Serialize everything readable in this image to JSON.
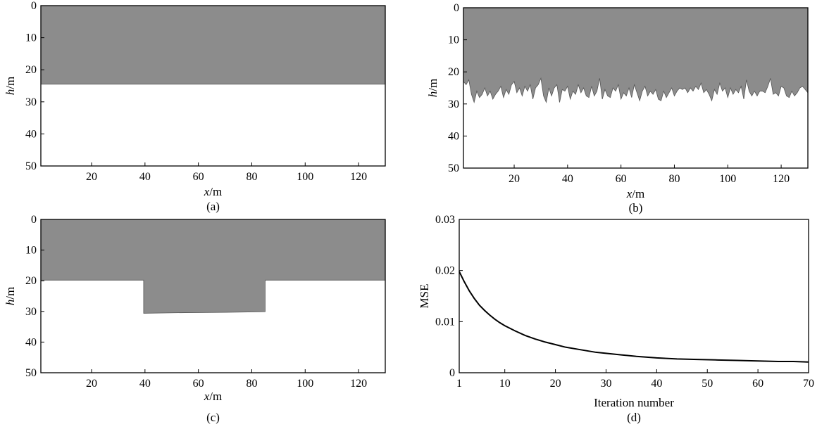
{
  "figure": {
    "background": "#ffffff",
    "fill_color": "#8c8c8c",
    "line_color": "#000000"
  },
  "chart_data": [
    {
      "id": "a",
      "type": "area",
      "panel_label": "(a)",
      "xlabel_var": "x",
      "xlabel_unit": "/m",
      "ylabel_var": "h",
      "ylabel_unit": "/m",
      "xlim": [
        1,
        130
      ],
      "ylim": [
        0,
        50
      ],
      "y_inverted": true,
      "x_ticks": [
        20,
        40,
        60,
        80,
        100,
        120
      ],
      "y_ticks": [
        0,
        10,
        20,
        30,
        40,
        50
      ],
      "interface": {
        "x": [
          1,
          130
        ],
        "y": [
          24.5,
          24.5
        ]
      },
      "grid": false
    },
    {
      "id": "b",
      "type": "area",
      "panel_label": "(b)",
      "xlabel_var": "x",
      "xlabel_unit": "/m",
      "ylabel_var": "h",
      "ylabel_unit": "/m",
      "xlim": [
        1,
        130
      ],
      "ylim": [
        0,
        50
      ],
      "y_inverted": true,
      "x_ticks": [
        20,
        40,
        60,
        80,
        100,
        120
      ],
      "y_ticks": [
        0,
        10,
        20,
        30,
        40,
        50
      ],
      "interface": {
        "x": [
          1,
          2,
          3,
          4,
          5,
          6,
          7,
          8,
          9,
          10,
          11,
          12,
          13,
          14,
          15,
          16,
          17,
          18,
          19,
          20,
          21,
          22,
          23,
          24,
          25,
          26,
          27,
          28,
          29,
          30,
          31,
          32,
          33,
          34,
          35,
          36,
          37,
          38,
          39,
          40,
          41,
          42,
          43,
          44,
          45,
          46,
          47,
          48,
          49,
          50,
          51,
          52,
          53,
          54,
          55,
          56,
          57,
          58,
          59,
          60,
          61,
          62,
          63,
          64,
          65,
          66,
          67,
          68,
          69,
          70,
          71,
          72,
          73,
          74,
          75,
          76,
          77,
          78,
          79,
          80,
          81,
          82,
          83,
          84,
          85,
          86,
          87,
          88,
          89,
          90,
          91,
          92,
          93,
          94,
          95,
          96,
          97,
          98,
          99,
          100,
          101,
          102,
          103,
          104,
          105,
          106,
          107,
          108,
          109,
          110,
          111,
          112,
          113,
          114,
          115,
          116,
          117,
          118,
          119,
          120,
          121,
          122,
          123,
          124,
          125,
          126,
          127,
          128,
          129,
          130
        ],
        "y": [
          23,
          24,
          22.5,
          27,
          29.5,
          26,
          28,
          27,
          25,
          27.5,
          26,
          28.5,
          27,
          26,
          24.5,
          28,
          25.5,
          27,
          24,
          23,
          26.5,
          25,
          27.5,
          24.5,
          26,
          24,
          28.5,
          25,
          24,
          22,
          27.5,
          29.5,
          25,
          27.5,
          25,
          24,
          29.5,
          25.5,
          26,
          24.5,
          28.5,
          26,
          27,
          24,
          26.5,
          25,
          27.5,
          28,
          24.5,
          27.5,
          26,
          22,
          28.5,
          25.5,
          27.5,
          28,
          25,
          26,
          24,
          28.5,
          26.5,
          27.5,
          25,
          28,
          24,
          26.5,
          29,
          26,
          24.5,
          27.5,
          26,
          27,
          25.5,
          28.5,
          29,
          26,
          28,
          26.5,
          25,
          27.5,
          26,
          25,
          25.5,
          25,
          26.5,
          25,
          26,
          24.5,
          25.5,
          23.5,
          26.5,
          25.5,
          27,
          29,
          25.5,
          27,
          23.5,
          26,
          25,
          28,
          25,
          27,
          25.5,
          26.5,
          24.5,
          28.5,
          22.5,
          26,
          27.5,
          26,
          27.5,
          26,
          26,
          26.5,
          24.5,
          22,
          27,
          26.5,
          27.5,
          24.5,
          25,
          27.5,
          28,
          26,
          27.5,
          26.5,
          25,
          24.5,
          25.5,
          26.5
        ]
      },
      "grid": false
    },
    {
      "id": "c",
      "type": "area",
      "panel_label": "(c)",
      "xlabel_var": "x",
      "xlabel_unit": "/m",
      "ylabel_var": "h",
      "ylabel_unit": "/m",
      "xlim": [
        1,
        130
      ],
      "ylim": [
        0,
        50
      ],
      "y_inverted": true,
      "x_ticks": [
        20,
        40,
        60,
        80,
        100,
        120
      ],
      "y_ticks": [
        0,
        10,
        20,
        30,
        40,
        50
      ],
      "interface": {
        "x": [
          1,
          39.5,
          39.5,
          55,
          70,
          85,
          85,
          130
        ],
        "y": [
          19.8,
          19.8,
          30.6,
          30.4,
          30.3,
          30.1,
          19.8,
          19.8
        ]
      },
      "grid": false
    },
    {
      "id": "d",
      "type": "line",
      "panel_label": "(d)",
      "xlabel": "Iteration number",
      "ylabel": "MSE",
      "xlim": [
        1,
        70
      ],
      "ylim": [
        0,
        0.03
      ],
      "x_ticks": [
        1,
        10,
        20,
        30,
        40,
        50,
        60,
        70
      ],
      "y_ticks": [
        "0",
        "0.01",
        "0.02",
        "0.03"
      ],
      "y_tick_values": [
        0,
        0.01,
        0.02,
        0.03
      ],
      "series": [
        {
          "x": [
            1,
            2,
            3,
            4,
            5,
            6,
            7,
            8,
            9,
            10,
            12,
            14,
            16,
            18,
            20,
            22,
            25,
            28,
            30,
            33,
            36,
            40,
            44,
            48,
            52,
            56,
            60,
            64,
            67,
            70
          ],
          "y": [
            0.0198,
            0.0178,
            0.016,
            0.0145,
            0.0132,
            0.0122,
            0.0113,
            0.0105,
            0.0098,
            0.0092,
            0.0082,
            0.0073,
            0.0066,
            0.006,
            0.0055,
            0.005,
            0.0045,
            0.004,
            0.0038,
            0.0035,
            0.0032,
            0.0029,
            0.0027,
            0.0026,
            0.0025,
            0.0024,
            0.0023,
            0.0022,
            0.0022,
            0.0021
          ]
        }
      ],
      "grid": false
    }
  ]
}
